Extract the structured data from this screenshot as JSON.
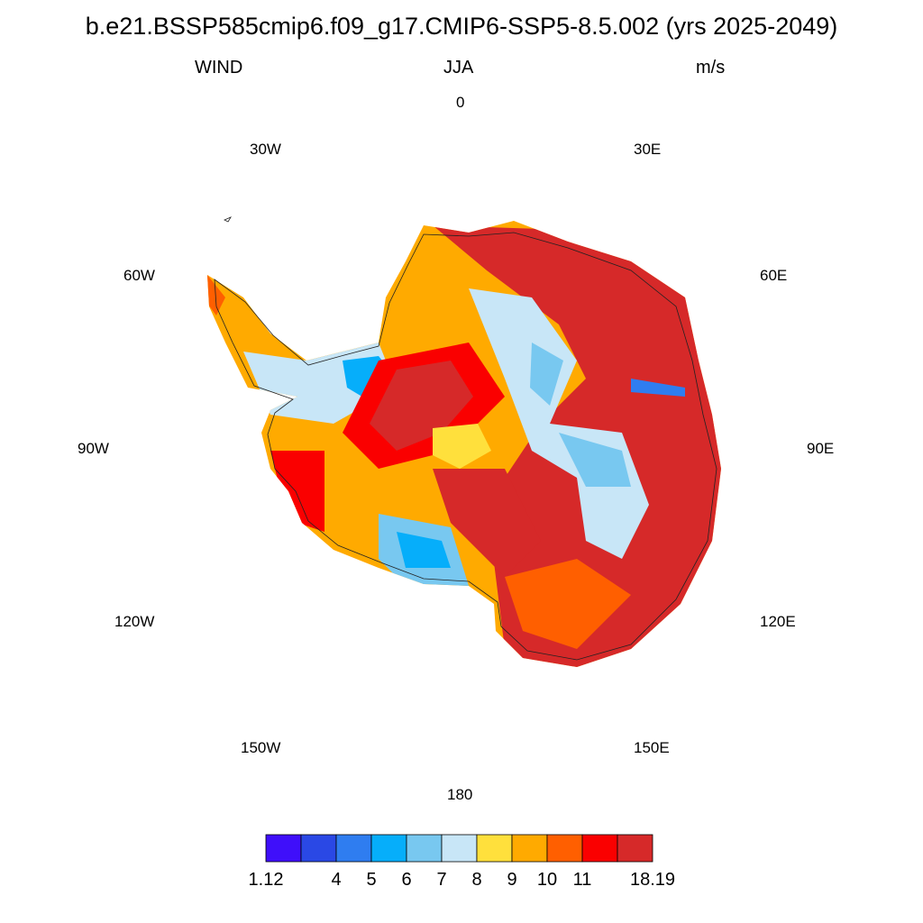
{
  "title": "b.e21.BSSP585cmip6.f09_g17.CMIP6-SSP5-8.5.002 (yrs 2025-2049)",
  "left_label": "WIND",
  "center_label": "JJA",
  "right_label": "m/s",
  "longitude_labels": {
    "lon_0": "0",
    "lon_30e": "30E",
    "lon_60e": "60E",
    "lon_90e": "90E",
    "lon_120e": "120E",
    "lon_150e": "150E",
    "lon_180": "180",
    "lon_150w": "150W",
    "lon_120w": "120W",
    "lon_90w": "90W",
    "lon_60w": "60W",
    "lon_30w": "30W"
  },
  "colorbar": {
    "colors": [
      "#3f0ffa",
      "#2a48e5",
      "#2f7df0",
      "#06aefa",
      "#78c8f0",
      "#c8e6f7",
      "#ffe03c",
      "#ffaa00",
      "#ff5f00",
      "#fa0000",
      "#d62929"
    ],
    "labels": [
      "1.12",
      "4",
      "5",
      "6",
      "7",
      "8",
      "9",
      "10",
      "11",
      "18.19"
    ]
  },
  "colors": {
    "ocean_background": "#ffffff",
    "coastline": "#222222"
  }
}
